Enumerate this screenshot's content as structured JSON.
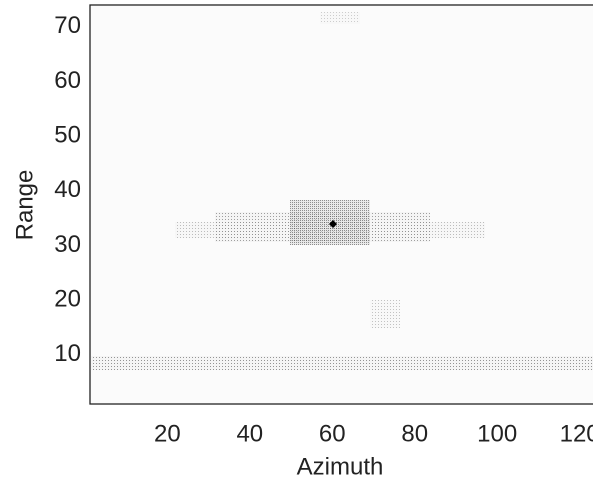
{
  "chart_data": {
    "type": "image",
    "xlabel": "Azimuth",
    "ylabel": "Range",
    "xlim": [
      1,
      123
    ],
    "ylim": [
      1,
      74
    ],
    "xticks": [
      20,
      40,
      60,
      80,
      100,
      120
    ],
    "yticks": [
      10,
      20,
      30,
      40,
      50,
      60,
      70
    ],
    "grid": false
  }
}
